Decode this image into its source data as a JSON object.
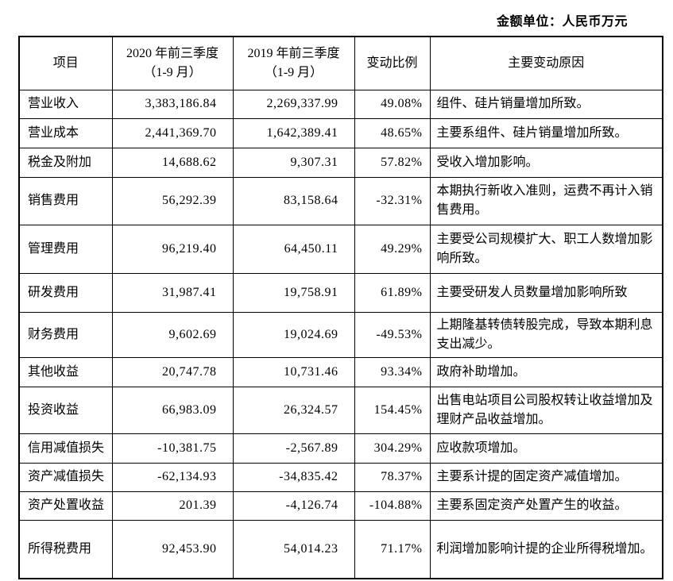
{
  "unit_label": "金额单位：人民币万元",
  "table": {
    "headers": {
      "item": "项目",
      "y2020": "2020 年前三季度\n（1-9 月）",
      "y2019": "2019 年前三季度\n（1-9 月）",
      "change": "变动比例",
      "reason": "主要变动原因"
    },
    "rows": [
      {
        "item": "营业收入",
        "y2020": "3,383,186.84",
        "y2019": "2,269,337.99",
        "change": "49.08%",
        "reason": "组件、硅片销量增加所致。"
      },
      {
        "item": "营业成本",
        "y2020": "2,441,369.70",
        "y2019": "1,642,389.41",
        "change": "48.65%",
        "reason": "主要系组件、硅片销量增加所致。"
      },
      {
        "item": "税金及附加",
        "y2020": "14,688.62",
        "y2019": "9,307.31",
        "change": "57.82%",
        "reason": "受收入增加影响。"
      },
      {
        "item": "销售费用",
        "y2020": "56,292.39",
        "y2019": "83,158.64",
        "change": "-32.31%",
        "reason": "本期执行新收入准则，运费不再计入销售费用。"
      },
      {
        "item": "管理费用",
        "y2020": "96,219.40",
        "y2019": "64,450.11",
        "change": "49.29%",
        "reason": "主要受公司规模扩大、职工人数增加影响所致。"
      },
      {
        "item": "研发费用",
        "y2020": "31,987.41",
        "y2019": "19,758.91",
        "change": "61.89%",
        "reason": "主要受研发人员数量增加影响所致"
      },
      {
        "item": "财务费用",
        "y2020": "9,602.69",
        "y2019": "19,024.69",
        "change": "-49.53%",
        "reason": "上期隆基转债转股完成，导致本期利息支出减少。"
      },
      {
        "item": "其他收益",
        "y2020": "20,747.78",
        "y2019": "10,731.46",
        "change": "93.34%",
        "reason": "政府补助增加。"
      },
      {
        "item": "投资收益",
        "y2020": "66,983.09",
        "y2019": "26,324.57",
        "change": "154.45%",
        "reason": "出售电站项目公司股权转让收益增加及理财产品收益增加。"
      },
      {
        "item": "信用减值损失",
        "y2020": "-10,381.75",
        "y2019": "-2,567.89",
        "change": "304.29%",
        "reason": "应收款项增加。"
      },
      {
        "item": "资产减值损失",
        "y2020": "-62,134.93",
        "y2019": "-34,835.42",
        "change": "78.37%",
        "reason": "主要系计提的固定资产减值增加。"
      },
      {
        "item": "资产处置收益",
        "y2020": "201.39",
        "y2019": "-4,126.74",
        "change": "-104.88%",
        "reason": "主要系固定资产处置产生的收益。"
      },
      {
        "item": "所得税费用",
        "y2020": "92,453.90",
        "y2019": "54,014.23",
        "change": "71.17%",
        "reason": "利润增加影响计提的企业所得税增加。"
      }
    ]
  }
}
